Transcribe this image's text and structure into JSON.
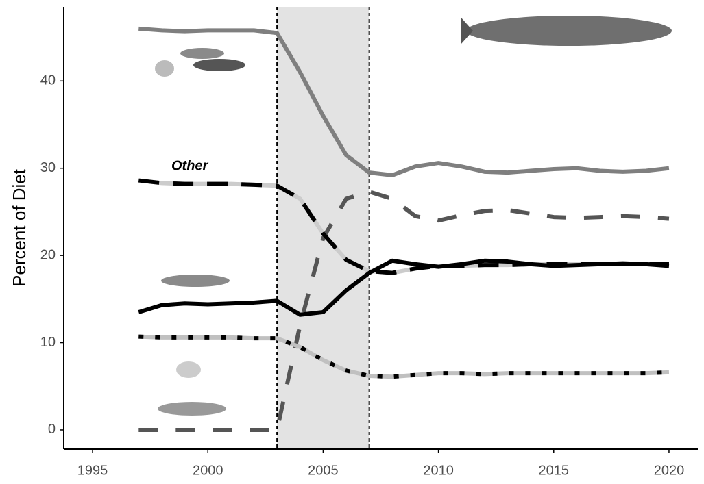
{
  "chart_data": {
    "type": "line",
    "y_label": "Percent of Diet",
    "annotation": "Other",
    "x": [
      1997,
      1998,
      1999,
      2000,
      2001,
      2002,
      2003,
      2004,
      2005,
      2006,
      2007,
      2008,
      2009,
      2010,
      2011,
      2012,
      2013,
      2014,
      2015,
      2016,
      2017,
      2018,
      2019,
      2020
    ],
    "series": [
      {
        "color": "#7f7f7f",
        "dash": "none",
        "values": [
          46,
          45.8,
          45.7,
          45.8,
          45.8,
          45.8,
          45.5,
          41,
          36,
          31.5,
          29.5,
          29.2,
          30.2,
          30.6,
          30.2,
          29.6,
          29.5,
          29.7,
          29.9,
          30,
          29.7,
          29.6,
          29.7,
          30
        ]
      },
      {
        "color": "#555555",
        "dash": "28 26",
        "values": [
          0,
          0,
          0,
          0,
          0,
          0,
          0,
          12,
          22,
          26.5,
          27.3,
          26.5,
          24.5,
          24,
          24.6,
          25.1,
          25.2,
          24.8,
          24.4,
          24.3,
          24.4,
          24.5,
          24.4,
          24.2
        ]
      },
      {
        "color": "#000000",
        "under_color": "#cccccc",
        "dash": "30 20",
        "values": [
          28.6,
          28.3,
          28.2,
          28.2,
          28.2,
          28.1,
          28,
          26.5,
          22.5,
          19.5,
          18.2,
          18,
          18.5,
          18.8,
          18.8,
          18.9,
          18.9,
          19,
          19,
          19,
          19,
          19,
          19,
          19
        ]
      },
      {
        "color": "#000000",
        "dash": "none",
        "values": [
          13.5,
          14.3,
          14.5,
          14.4,
          14.5,
          14.6,
          14.8,
          13.2,
          13.5,
          16,
          18,
          19.4,
          19,
          18.7,
          19,
          19.4,
          19.3,
          19,
          18.8,
          18.9,
          19,
          19.1,
          19,
          18.8
        ]
      },
      {
        "color": "#000000",
        "under_color": "#c0c0c0",
        "dash": "7 17",
        "values": [
          10.7,
          10.6,
          10.6,
          10.6,
          10.6,
          10.5,
          10.5,
          9.5,
          8,
          6.8,
          6.2,
          6.1,
          6.3,
          6.5,
          6.5,
          6.4,
          6.5,
          6.5,
          6.5,
          6.5,
          6.5,
          6.5,
          6.5,
          6.6
        ]
      }
    ],
    "shaded_period": [
      2003,
      2007
    ],
    "xlim": [
      1993.75,
      2021.25
    ],
    "ylim": [
      -2.2,
      48.5
    ],
    "xticks": [
      1995,
      2000,
      2005,
      2010,
      2015,
      2020
    ],
    "yticks": [
      0,
      10,
      20,
      30,
      40
    ]
  }
}
